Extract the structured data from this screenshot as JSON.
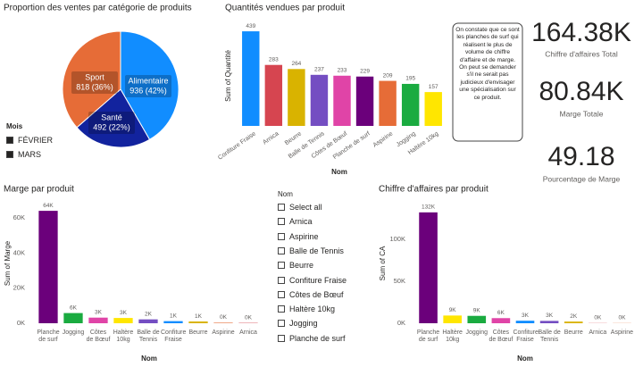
{
  "chart_data": [
    {
      "type": "pie",
      "title": "Proportion des ventes par catégorie de produits",
      "categories": [
        "Alimentaire",
        "Santé",
        "Sport"
      ],
      "values": [
        936,
        492,
        818
      ],
      "value_labels": [
        "936 (42%)",
        "492 (22%)",
        "818 (36%)"
      ],
      "colors": [
        "#118DFF",
        "#12239E",
        "#E66C37"
      ]
    },
    {
      "type": "bar",
      "title": "Quantités vendues par produit",
      "y_label": "Sum of Quantité",
      "x_label": "Nom",
      "categories": [
        "Confiture Fraise",
        "Arnica",
        "Beurre",
        "Balle de Tennis",
        "Côtes de Bœuf",
        "Planche de surf",
        "Aspirine",
        "Jogging",
        "Haltère 10kg"
      ],
      "values": [
        439,
        283,
        264,
        237,
        233,
        229,
        209,
        195,
        157
      ],
      "colors": [
        "#118DFF",
        "#D64550",
        "#D9B300",
        "#744EC2",
        "#E044A7",
        "#6B007B",
        "#E66C37",
        "#1AAB40",
        "#FFE600"
      ],
      "ylim": [
        0,
        460
      ]
    },
    {
      "type": "bar",
      "title": "Marge par produit",
      "y_label": "Sum of Marge",
      "x_label": "Nom",
      "categories": [
        "Planche de surf",
        "Jogging",
        "Côtes de Bœuf",
        "Haltère 10kg",
        "Balle de Tennis",
        "Confiture Fraise",
        "Beurre",
        "Aspirine",
        "Arnica"
      ],
      "values": [
        64000,
        5800,
        3200,
        3000,
        2200,
        1200,
        1000,
        300,
        200
      ],
      "value_labels": [
        "64K",
        "6K",
        "3K",
        "3K",
        "2K",
        "1K",
        "1K",
        "0K",
        "0K"
      ],
      "colors": [
        "#6B007B",
        "#1AAB40",
        "#E044A7",
        "#FFE600",
        "#744EC2",
        "#118DFF",
        "#D9B300",
        "#E66C37",
        "#D64550"
      ],
      "ylim": [
        0,
        70000
      ],
      "yticks": [
        {
          "value": 0,
          "label": "0K"
        },
        {
          "value": 20000,
          "label": "20K"
        },
        {
          "value": 40000,
          "label": "40K"
        },
        {
          "value": 60000,
          "label": "60K"
        }
      ]
    },
    {
      "type": "bar",
      "title": "Chiffre d'affaires par produit",
      "y_label": "Sum of CA",
      "x_label": "Nom",
      "categories": [
        "Planche de surf",
        "Haltère 10kg",
        "Jogging",
        "Côtes de Bœuf",
        "Confiture Fraise",
        "Balle de Tennis",
        "Beurre",
        "Arnica",
        "Aspirine"
      ],
      "values": [
        132100,
        9200,
        8800,
        6100,
        3000,
        2800,
        2000,
        200,
        180
      ],
      "value_labels": [
        "132K",
        "9K",
        "9K",
        "6K",
        "3K",
        "3K",
        "2K",
        "0K",
        "0K"
      ],
      "colors": [
        "#6B007B",
        "#FFE600",
        "#1AAB40",
        "#E044A7",
        "#118DFF",
        "#744EC2",
        "#D9B300",
        "#D64550",
        "#E66C37"
      ],
      "ylim": [
        0,
        150000
      ],
      "yticks": [
        {
          "value": 0,
          "label": "0K"
        },
        {
          "value": 50000,
          "label": "50K"
        },
        {
          "value": 100000,
          "label": "100K"
        }
      ]
    }
  ],
  "month_slicer": {
    "title": "Mois",
    "items": [
      "FÉVRIER",
      "MARS"
    ]
  },
  "note": "On constate que ce sont les planches de surf qui réalisent le plus de volume de chiffre d'affaire et de marge. On peut se demander s'il ne serait pas judicieux d'envisager une spécialisation sur ce produit.",
  "cards": [
    {
      "value": "164.38K",
      "label": "Chiffre d'affaires Total"
    },
    {
      "value": "80.84K",
      "label": "Marge Totale"
    },
    {
      "value": "49.18",
      "label": "Pourcentage de Marge"
    }
  ],
  "name_slicer": {
    "title": "Nom",
    "items": [
      "Select all",
      "Arnica",
      "Aspirine",
      "Balle de Tennis",
      "Beurre",
      "Confiture Fraise",
      "Côtes de Bœuf",
      "Haltère 10kg",
      "Jogging",
      "Planche de surf"
    ]
  }
}
